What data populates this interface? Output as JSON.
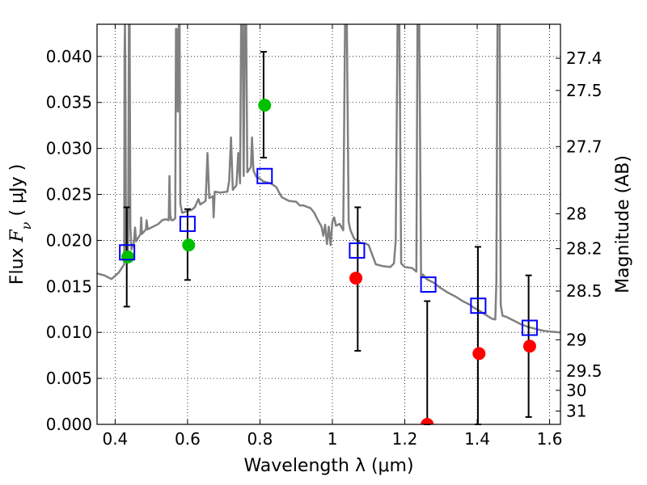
{
  "chart_data": {
    "type": "scatter",
    "xlabel": "Wavelength  λ (μm)",
    "ylabel": "Flux  F_ν  ( μJy )",
    "ylabel_parts": {
      "prefix": "Flux  ",
      "symbol": "F",
      "subscript": "ν",
      "suffix": "  ( μJy )"
    },
    "ylabel_right": "Magnitude (AB)",
    "xlim": [
      0.35,
      1.63
    ],
    "ylim": [
      0.0,
      0.0435
    ],
    "grid": true,
    "x_ticks": [
      {
        "value": 0.4,
        "label": "0.4"
      },
      {
        "value": 0.6,
        "label": "0.6"
      },
      {
        "value": 0.8,
        "label": "0.8"
      },
      {
        "value": 1.0,
        "label": "1"
      },
      {
        "value": 1.2,
        "label": "1.2"
      },
      {
        "value": 1.4,
        "label": "1.4"
      },
      {
        "value": 1.6,
        "label": "1.6"
      }
    ],
    "y_ticks": [
      {
        "value": 0.0,
        "label": "0.000"
      },
      {
        "value": 0.005,
        "label": "0.005"
      },
      {
        "value": 0.01,
        "label": "0.010"
      },
      {
        "value": 0.015,
        "label": "0.015"
      },
      {
        "value": 0.02,
        "label": "0.020"
      },
      {
        "value": 0.025,
        "label": "0.025"
      },
      {
        "value": 0.03,
        "label": "0.030"
      },
      {
        "value": 0.035,
        "label": "0.035"
      },
      {
        "value": 0.04,
        "label": "0.040"
      }
    ],
    "right_ticks": [
      {
        "label": "27.4",
        "flux": 0.0398
      },
      {
        "label": "27.5",
        "flux": 0.0363
      },
      {
        "label": "27.7",
        "flux": 0.0302
      },
      {
        "label": "28",
        "flux": 0.0229
      },
      {
        "label": "28.2",
        "flux": 0.0191
      },
      {
        "label": "28.5",
        "flux": 0.0145
      },
      {
        "label": "29",
        "flux": 0.0092
      },
      {
        "label": "29.5",
        "flux": 0.0058
      },
      {
        "label": "30",
        "flux": 0.0037
      },
      {
        "label": "31",
        "flux": 0.00145
      }
    ],
    "series": [
      {
        "kind": "line",
        "color": "#808080",
        "points": [
          [
            0.35,
            0.0164
          ],
          [
            0.37,
            0.0162
          ],
          [
            0.39,
            0.0158
          ],
          [
            0.41,
            0.0165
          ],
          [
            0.425,
            0.0174
          ],
          [
            0.426,
            0.04
          ],
          [
            0.427,
            0.0435
          ],
          [
            0.428,
            0.04
          ],
          [
            0.43,
            0.018
          ],
          [
            0.435,
            0.0179
          ],
          [
            0.436,
            0.0204
          ],
          [
            0.438,
            0.0435
          ],
          [
            0.44,
            0.0435
          ],
          [
            0.442,
            0.0215
          ],
          [
            0.445,
            0.019
          ],
          [
            0.452,
            0.0198
          ],
          [
            0.455,
            0.0214
          ],
          [
            0.458,
            0.0199
          ],
          [
            0.47,
            0.0207
          ],
          [
            0.472,
            0.0225
          ],
          [
            0.474,
            0.0207
          ],
          [
            0.485,
            0.0212
          ],
          [
            0.487,
            0.0222
          ],
          [
            0.49,
            0.0212
          ],
          [
            0.5,
            0.0214
          ],
          [
            0.52,
            0.0218
          ],
          [
            0.53,
            0.0222
          ],
          [
            0.54,
            0.0223
          ],
          [
            0.548,
            0.0222
          ],
          [
            0.55,
            0.027
          ],
          [
            0.552,
            0.0228
          ],
          [
            0.555,
            0.0222
          ],
          [
            0.56,
            0.0222
          ],
          [
            0.566,
            0.0224
          ],
          [
            0.568,
            0.043
          ],
          [
            0.57,
            0.043
          ],
          [
            0.573,
            0.034
          ],
          [
            0.576,
            0.0435
          ],
          [
            0.578,
            0.0435
          ],
          [
            0.58,
            0.024
          ],
          [
            0.585,
            0.023
          ],
          [
            0.6,
            0.0232
          ],
          [
            0.61,
            0.0233
          ],
          [
            0.62,
            0.0236
          ],
          [
            0.63,
            0.0245
          ],
          [
            0.635,
            0.0239
          ],
          [
            0.65,
            0.0243
          ],
          [
            0.655,
            0.0295
          ],
          [
            0.66,
            0.0246
          ],
          [
            0.67,
            0.0248
          ],
          [
            0.672,
            0.0225
          ],
          [
            0.675,
            0.0253
          ],
          [
            0.69,
            0.0252
          ],
          [
            0.71,
            0.0253
          ],
          [
            0.715,
            0.0265
          ],
          [
            0.72,
            0.0312
          ],
          [
            0.725,
            0.0255
          ],
          [
            0.735,
            0.026
          ],
          [
            0.74,
            0.0295
          ],
          [
            0.745,
            0.0262
          ],
          [
            0.748,
            0.0435
          ],
          [
            0.752,
            0.0435
          ],
          [
            0.755,
            0.027
          ],
          [
            0.758,
            0.0435
          ],
          [
            0.762,
            0.0435
          ],
          [
            0.765,
            0.0274
          ],
          [
            0.775,
            0.028
          ],
          [
            0.778,
            0.0312
          ],
          [
            0.782,
            0.0276
          ],
          [
            0.79,
            0.0269
          ],
          [
            0.8,
            0.0267
          ],
          [
            0.81,
            0.0264
          ],
          [
            0.82,
            0.0263
          ],
          [
            0.83,
            0.0262
          ],
          [
            0.845,
            0.0258
          ],
          [
            0.86,
            0.0247
          ],
          [
            0.88,
            0.0243
          ],
          [
            0.9,
            0.0242
          ],
          [
            0.91,
            0.0238
          ],
          [
            0.92,
            0.0238
          ],
          [
            0.94,
            0.0235
          ],
          [
            0.95,
            0.023
          ],
          [
            0.96,
            0.0222
          ],
          [
            0.97,
            0.0215
          ],
          [
            0.975,
            0.0205
          ],
          [
            0.98,
            0.0217
          ],
          [
            0.985,
            0.0196
          ],
          [
            0.99,
            0.0215
          ],
          [
            0.995,
            0.0195
          ],
          [
            1.0,
            0.022
          ],
          [
            1.005,
            0.0225
          ],
          [
            1.01,
            0.0216
          ],
          [
            1.02,
            0.0218
          ],
          [
            1.03,
            0.0211
          ],
          [
            1.035,
            0.0435
          ],
          [
            1.04,
            0.0435
          ],
          [
            1.045,
            0.022
          ],
          [
            1.05,
            0.0211
          ],
          [
            1.06,
            0.0202
          ],
          [
            1.08,
            0.0197
          ],
          [
            1.09,
            0.0197
          ],
          [
            1.1,
            0.0195
          ],
          [
            1.12,
            0.0174
          ],
          [
            1.14,
            0.0172
          ],
          [
            1.16,
            0.0171
          ],
          [
            1.17,
            0.0175
          ],
          [
            1.175,
            0.02
          ],
          [
            1.18,
            0.0435
          ],
          [
            1.185,
            0.0435
          ],
          [
            1.19,
            0.0175
          ],
          [
            1.2,
            0.0171
          ],
          [
            1.22,
            0.017
          ],
          [
            1.232,
            0.0166
          ],
          [
            1.235,
            0.0435
          ],
          [
            1.24,
            0.0435
          ],
          [
            1.245,
            0.016
          ],
          [
            1.25,
            0.0163
          ],
          [
            1.26,
            0.0158
          ],
          [
            1.28,
            0.0154
          ],
          [
            1.3,
            0.0148
          ],
          [
            1.32,
            0.0143
          ],
          [
            1.34,
            0.0139
          ],
          [
            1.36,
            0.0134
          ],
          [
            1.38,
            0.013
          ],
          [
            1.39,
            0.0127
          ],
          [
            1.4,
            0.0125
          ],
          [
            1.42,
            0.012
          ],
          [
            1.44,
            0.0115
          ],
          [
            1.45,
            0.0114
          ],
          [
            1.453,
            0.0155
          ],
          [
            1.456,
            0.0435
          ],
          [
            1.462,
            0.0435
          ],
          [
            1.465,
            0.013
          ],
          [
            1.47,
            0.0118
          ],
          [
            1.48,
            0.0117
          ],
          [
            1.5,
            0.0113
          ],
          [
            1.52,
            0.0109
          ],
          [
            1.54,
            0.0106
          ],
          [
            1.56,
            0.0104
          ],
          [
            1.58,
            0.0102
          ],
          [
            1.6,
            0.0101
          ],
          [
            1.63,
            0.01
          ]
        ]
      },
      {
        "kind": "errorbar",
        "color": "#000000",
        "points": [
          {
            "x": 0.432,
            "low": 0.0128,
            "high": 0.0236
          },
          {
            "x": 0.6,
            "low": 0.0157,
            "high": 0.0234
          },
          {
            "x": 0.81,
            "low": 0.029,
            "high": 0.0405
          },
          {
            "x": 1.07,
            "low": 0.008,
            "high": 0.0236
          },
          {
            "x": 1.262,
            "low": 0.0,
            "high": 0.0134
          },
          {
            "x": 1.402,
            "low": 0.0,
            "high": 0.0193
          },
          {
            "x": 1.542,
            "low": 0.0008,
            "high": 0.0162
          }
        ]
      },
      {
        "kind": "circle",
        "color": "#00c000",
        "points": [
          [
            0.435,
            0.0182
          ],
          [
            0.603,
            0.0195
          ],
          [
            0.813,
            0.0347
          ]
        ]
      },
      {
        "kind": "circle",
        "color": "#ff0000",
        "points": [
          [
            1.065,
            0.0159
          ],
          [
            1.262,
            0.0
          ],
          [
            1.405,
            0.0077
          ],
          [
            1.545,
            0.0085
          ]
        ]
      },
      {
        "kind": "square",
        "color": "#0000ff",
        "points": [
          [
            0.433,
            0.0187
          ],
          [
            0.6,
            0.0218
          ],
          [
            0.813,
            0.027
          ],
          [
            1.068,
            0.0189
          ],
          [
            1.265,
            0.0152
          ],
          [
            1.403,
            0.0129
          ],
          [
            1.545,
            0.0105
          ]
        ]
      }
    ]
  }
}
